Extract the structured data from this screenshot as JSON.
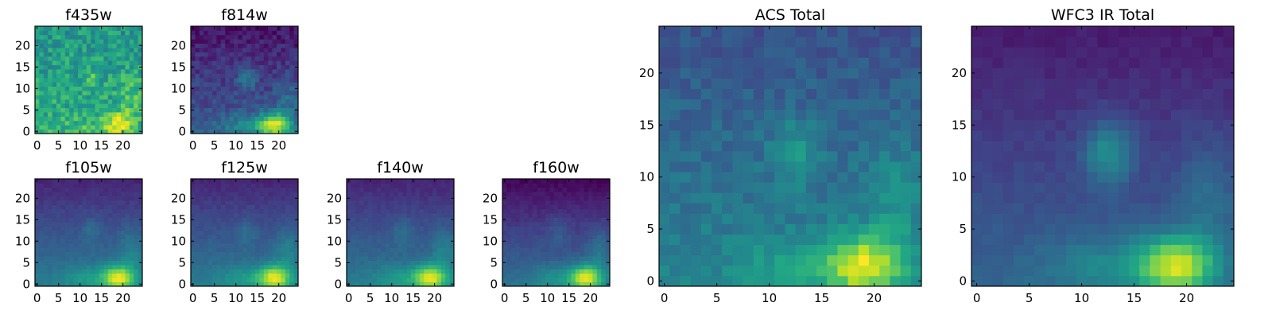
{
  "chart_data": {
    "type": "heatmap",
    "colormap": "viridis",
    "grid_size": 25,
    "panels": [
      {
        "title": "f435w",
        "xticks": [
          0,
          5,
          10,
          15,
          20
        ],
        "yticks": [
          0,
          5,
          10,
          15,
          20
        ],
        "xlim": [
          -0.5,
          24.5
        ],
        "ylim": [
          -0.5,
          24.5
        ]
      },
      {
        "title": "f814w",
        "xticks": [
          0,
          5,
          10,
          15,
          20
        ],
        "yticks": [
          0,
          5,
          10,
          15,
          20
        ],
        "xlim": [
          -0.5,
          24.5
        ],
        "ylim": [
          -0.5,
          24.5
        ]
      },
      {
        "title": "f105w",
        "xticks": [
          0,
          5,
          10,
          15,
          20
        ],
        "yticks": [
          0,
          5,
          10,
          15,
          20
        ],
        "xlim": [
          -0.5,
          24.5
        ],
        "ylim": [
          -0.5,
          24.5
        ]
      },
      {
        "title": "f125w",
        "xticks": [
          0,
          5,
          10,
          15,
          20
        ],
        "yticks": [
          0,
          5,
          10,
          15,
          20
        ],
        "xlim": [
          -0.5,
          24.5
        ],
        "ylim": [
          -0.5,
          24.5
        ]
      },
      {
        "title": "f140w",
        "xticks": [
          0,
          5,
          10,
          15,
          20
        ],
        "yticks": [
          0,
          5,
          10,
          15,
          20
        ],
        "xlim": [
          -0.5,
          24.5
        ],
        "ylim": [
          -0.5,
          24.5
        ]
      },
      {
        "title": "f160w",
        "xticks": [
          0,
          5,
          10,
          15,
          20
        ],
        "yticks": [
          0,
          5,
          10,
          15,
          20
        ],
        "xlim": [
          -0.5,
          24.5
        ],
        "ylim": [
          -0.5,
          24.5
        ]
      },
      {
        "title": "ACS Total",
        "xticks": [
          0,
          5,
          10,
          15,
          20
        ],
        "yticks": [
          0,
          5,
          10,
          15,
          20
        ],
        "xlim": [
          -0.5,
          24.5
        ],
        "ylim": [
          -0.5,
          24.5
        ]
      },
      {
        "title": "WFC3 IR Total",
        "xticks": [
          0,
          5,
          10,
          15,
          20
        ],
        "yticks": [
          0,
          5,
          10,
          15,
          20
        ],
        "xlim": [
          -0.5,
          24.5
        ],
        "ylim": [
          -0.5,
          24.5
        ]
      }
    ]
  }
}
